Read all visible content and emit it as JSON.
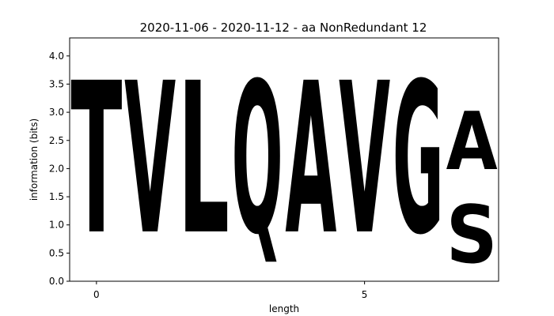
{
  "chart_data": {
    "type": "sequence-logo",
    "title": "2020-11-06 - 2020-11-12 - aa NonRedundant 12",
    "xlabel": "length",
    "ylabel": "information (bits)",
    "xlim": [
      -0.5,
      7.5
    ],
    "ylim": [
      0,
      4.32
    ],
    "xticks": [
      0,
      5
    ],
    "yticks": [
      "0.0",
      "0.5",
      "1.0",
      "1.5",
      "2.0",
      "2.5",
      "3.0",
      "3.5",
      "4.0"
    ],
    "positions": [
      {
        "x": 0,
        "stack": [
          {
            "letter": "T",
            "height": 4.32,
            "color": "#22d62a"
          }
        ]
      },
      {
        "x": 1,
        "stack": [
          {
            "letter": "V",
            "height": 4.32,
            "color": "#000000"
          }
        ]
      },
      {
        "x": 2,
        "stack": [
          {
            "letter": "L",
            "height": 4.32,
            "color": "#000000"
          }
        ]
      },
      {
        "x": 3,
        "stack": [
          {
            "letter": "Q",
            "height": 4.32,
            "color": "#d41fc6"
          }
        ]
      },
      {
        "x": 4,
        "stack": [
          {
            "letter": "A",
            "height": 4.32,
            "color": "#000000"
          }
        ]
      },
      {
        "x": 5,
        "stack": [
          {
            "letter": "V",
            "height": 4.32,
            "color": "#000000"
          }
        ]
      },
      {
        "x": 6,
        "stack": [
          {
            "letter": "G",
            "height": 4.32,
            "color": "#22d62a"
          }
        ]
      },
      {
        "x": 7,
        "stack": [
          {
            "letter": "S",
            "height": 1.65,
            "color": "#22d62a"
          },
          {
            "letter": "A",
            "height": 1.65,
            "color": "#000000"
          }
        ]
      }
    ]
  }
}
